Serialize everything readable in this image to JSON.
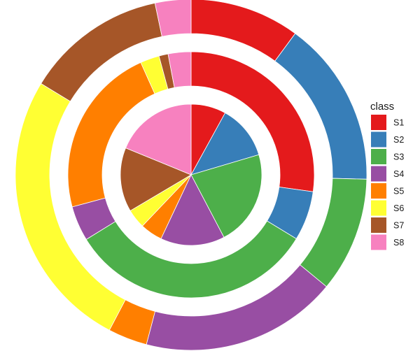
{
  "chart_data": {
    "type": "pie",
    "variant": "concentric rings (multi-level donut)",
    "legend": {
      "title": "class",
      "placement": "right",
      "entries": [
        "S1",
        "S2",
        "S3",
        "S4",
        "S5",
        "S6",
        "S7",
        "S8"
      ]
    },
    "colors": {
      "S1": "#E41A1C",
      "S2": "#377EB8",
      "S3": "#4DAF4A",
      "S4": "#984EA3",
      "S5": "#FF7F00",
      "S6": "#FFFF33",
      "S7": "#A65628",
      "S8": "#F781BF"
    },
    "rings": [
      {
        "level": "inner",
        "slices": [
          {
            "class": "S1",
            "value": 8.0
          },
          {
            "class": "S2",
            "value": 12.4
          },
          {
            "class": "S3",
            "value": 21.9
          },
          {
            "class": "S4",
            "value": 14.7
          },
          {
            "class": "S5",
            "value": 5.1
          },
          {
            "class": "S6",
            "value": 4.4
          },
          {
            "class": "S7",
            "value": 14.7
          },
          {
            "class": "S8",
            "value": 18.8
          }
        ]
      },
      {
        "level": "middle",
        "slices": [
          {
            "class": "S1",
            "value": 27.2
          },
          {
            "class": "S2",
            "value": 6.5
          },
          {
            "class": "S3",
            "value": 32.5
          },
          {
            "class": "S4",
            "value": 4.6
          },
          {
            "class": "S5",
            "value": 22.5
          },
          {
            "class": "S6",
            "value": 2.5
          },
          {
            "class": "S7",
            "value": 1.2
          },
          {
            "class": "S8",
            "value": 3.0
          }
        ]
      },
      {
        "level": "outer",
        "slices": [
          {
            "class": "S1",
            "value": 10.1
          },
          {
            "class": "S2",
            "value": 15.3
          },
          {
            "class": "S3",
            "value": 10.6
          },
          {
            "class": "S4",
            "value": 18.1
          },
          {
            "class": "S5",
            "value": 3.6
          },
          {
            "class": "S6",
            "value": 26.0
          },
          {
            "class": "S7",
            "value": 13.0
          },
          {
            "class": "S8",
            "value": 3.3
          }
        ]
      }
    ],
    "start_angle": "12 o'clock",
    "direction": "clockwise",
    "grid": false
  }
}
